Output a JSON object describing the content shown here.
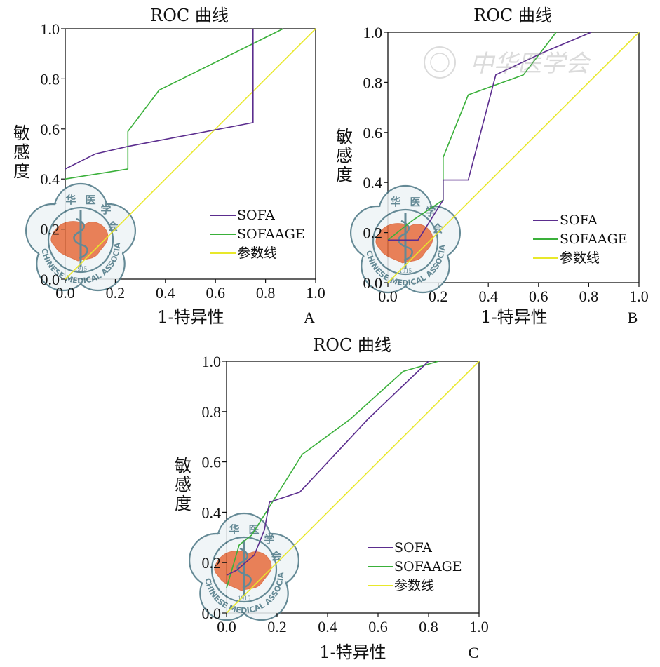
{
  "chart_data": [
    {
      "type": "line",
      "panel_label": "A",
      "title": "ROC 曲线",
      "xlabel": "1-特异性",
      "ylabel": "敏感度",
      "xlim": [
        0,
        1
      ],
      "ylim": [
        0,
        1
      ],
      "xticks": [
        "0.0",
        "0.2",
        "0.4",
        "0.6",
        "0.8",
        "1.0"
      ],
      "yticks": [
        "0.0",
        "0.2",
        "0.4",
        "0.6",
        "0.8",
        "1.0"
      ],
      "legend_position": "bottom-right",
      "series": [
        {
          "name": "SOFA",
          "color": "#5b2d8e",
          "points": [
            [
              0,
              0.44
            ],
            [
              0.12,
              0.5
            ],
            [
              0.25,
              0.53
            ],
            [
              0.75,
              0.625
            ],
            [
              0.75,
              1.0
            ]
          ]
        },
        {
          "name": "SOFAAGE",
          "color": "#3ab03a",
          "points": [
            [
              0,
              0.4
            ],
            [
              0.25,
              0.44
            ],
            [
              0.25,
              0.59
            ],
            [
              0.375,
              0.755
            ],
            [
              0.87,
              1.0
            ]
          ]
        },
        {
          "name": "参数线",
          "color": "#e8e82a",
          "points": [
            [
              0,
              0
            ],
            [
              1,
              1
            ]
          ]
        }
      ]
    },
    {
      "type": "line",
      "panel_label": "B",
      "title": "ROC 曲线",
      "xlabel": "1-特异性",
      "ylabel": "敏感度",
      "xlim": [
        0,
        1
      ],
      "ylim": [
        0,
        1
      ],
      "xticks": [
        "0.0",
        "0.2",
        "0.4",
        "0.6",
        "0.8",
        "1.0"
      ],
      "yticks": [
        "0.0",
        "0.2",
        "0.4",
        "0.6",
        "0.8",
        "1.0"
      ],
      "legend_position": "bottom-right",
      "series": [
        {
          "name": "SOFA",
          "color": "#5b2d8e",
          "points": [
            [
              0,
              0.17
            ],
            [
              0.12,
              0.17
            ],
            [
              0.22,
              0.33
            ],
            [
              0.22,
              0.41
            ],
            [
              0.32,
              0.41
            ],
            [
              0.43,
              0.83
            ],
            [
              0.62,
              0.92
            ],
            [
              0.81,
              1.0
            ]
          ]
        },
        {
          "name": "SOFAAGE",
          "color": "#3ab03a",
          "points": [
            [
              0,
              0.17
            ],
            [
              0.1,
              0.25
            ],
            [
              0.22,
              0.33
            ],
            [
              0.22,
              0.5
            ],
            [
              0.32,
              0.75
            ],
            [
              0.54,
              0.83
            ],
            [
              0.67,
              1.0
            ]
          ]
        },
        {
          "name": "参数线",
          "color": "#e8e82a",
          "points": [
            [
              0,
              0
            ],
            [
              1,
              1
            ]
          ]
        }
      ]
    },
    {
      "type": "line",
      "panel_label": "C",
      "title": "ROC 曲线",
      "xlabel": "1-特异性",
      "ylabel": "敏感度",
      "xlim": [
        0,
        1
      ],
      "ylim": [
        0,
        1
      ],
      "xticks": [
        "0.0",
        "0.2",
        "0.4",
        "0.6",
        "0.8",
        "1.0"
      ],
      "yticks": [
        "0.0",
        "0.2",
        "0.4",
        "0.6",
        "0.8",
        "1.0"
      ],
      "legend_position": "bottom-right",
      "series": [
        {
          "name": "SOFA",
          "color": "#5b2d8e",
          "points": [
            [
              0,
              0.15
            ],
            [
              0.04,
              0.17
            ],
            [
              0.11,
              0.23
            ],
            [
              0.15,
              0.33
            ],
            [
              0.17,
              0.44
            ],
            [
              0.29,
              0.48
            ],
            [
              0.56,
              0.77
            ],
            [
              0.8,
              1.0
            ]
          ]
        },
        {
          "name": "SOFAAGE",
          "color": "#3ab03a",
          "points": [
            [
              0,
              0.1
            ],
            [
              0.05,
              0.27
            ],
            [
              0.1,
              0.31
            ],
            [
              0.3,
              0.63
            ],
            [
              0.49,
              0.77
            ],
            [
              0.7,
              0.96
            ],
            [
              0.84,
              1.0
            ]
          ]
        },
        {
          "name": "参数线",
          "color": "#e8e82a",
          "points": [
            [
              0,
              0
            ],
            [
              1,
              1
            ]
          ]
        }
      ]
    }
  ],
  "watermark": {
    "logo_text": "中华医学会",
    "seal_text": "CHINESE MEDICAL ASSOCIATION",
    "seal_year": "1915",
    "seal_chars": [
      "中",
      "华",
      "医",
      "学",
      "会"
    ]
  }
}
